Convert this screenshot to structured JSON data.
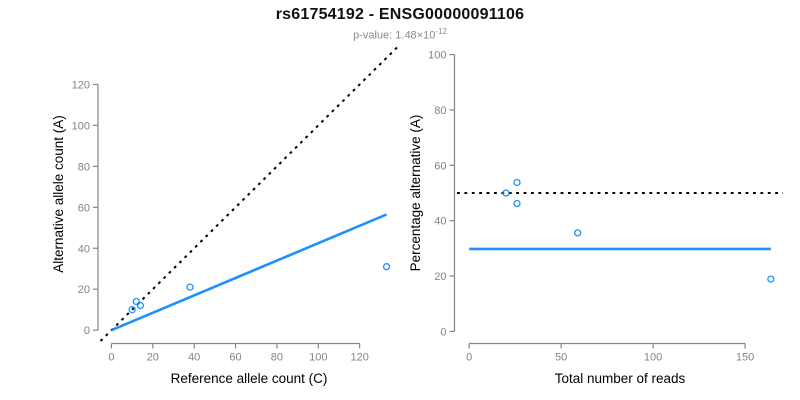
{
  "header": {
    "title": "rs61754192 - ENSG00000091106",
    "subtitle_base": "p-value: 1.48×10",
    "subtitle_exponent": "-12"
  },
  "colors": {
    "accent_blue": "#1E90FF",
    "point_blue": "#1E90FF",
    "dotted_black": "#000000",
    "axis_gray": "#848484",
    "tick_label_gray": "#848484",
    "axis_label_black": "#000000",
    "title_black": "#111111",
    "subtitle_gray": "#8a8a8a"
  },
  "chart_data": [
    {
      "type": "scatter",
      "name": "allele-count-scatter",
      "xlabel": "Reference allele count (C)",
      "ylabel": "Alternative allele count (A)",
      "xticks": [
        0,
        20,
        40,
        60,
        80,
        100,
        120
      ],
      "yticks": [
        0,
        20,
        40,
        60,
        80,
        100,
        120
      ],
      "xlim": [
        -5.3,
        138.3
      ],
      "ylim": [
        -5.3,
        138.3
      ],
      "grid": false,
      "legend": "none",
      "points": [
        [
          10,
          10
        ],
        [
          12,
          14
        ],
        [
          14,
          12
        ],
        [
          38,
          21
        ],
        [
          133,
          31
        ]
      ],
      "lines": [
        {
          "name": "identity-line",
          "style": "dotted",
          "color_key": "dotted_black",
          "x": [
            -5.3,
            138.3
          ],
          "y": [
            -5.3,
            138.3
          ]
        },
        {
          "name": "fitted-ratio-line",
          "style": "solid",
          "color_key": "accent_blue",
          "x": [
            0,
            133
          ],
          "y": [
            0,
            56.5
          ]
        }
      ]
    },
    {
      "type": "scatter",
      "name": "percentage-scatter",
      "xlabel": "Total number of reads",
      "ylabel": "Percentage alternative (A)",
      "xticks": [
        0,
        50,
        100,
        150
      ],
      "yticks": [
        0,
        20,
        40,
        60,
        80,
        100
      ],
      "xlim": [
        -6.6,
        170.6
      ],
      "ylim": [
        -4,
        104
      ],
      "grid": false,
      "legend": "none",
      "points": [
        [
          20,
          50
        ],
        [
          26,
          53.8
        ],
        [
          26,
          46.2
        ],
        [
          59,
          35.6
        ],
        [
          164,
          18.9
        ]
      ],
      "lines": [
        {
          "name": "expected-50pct-line",
          "style": "dotted",
          "color_key": "dotted_black",
          "x": [
            -6.6,
            170.6
          ],
          "y": [
            50,
            50
          ]
        },
        {
          "name": "observed-pct-line",
          "style": "solid",
          "color_key": "accent_blue",
          "x": [
            0,
            164
          ],
          "y": [
            29.8,
            29.8
          ]
        }
      ]
    }
  ]
}
